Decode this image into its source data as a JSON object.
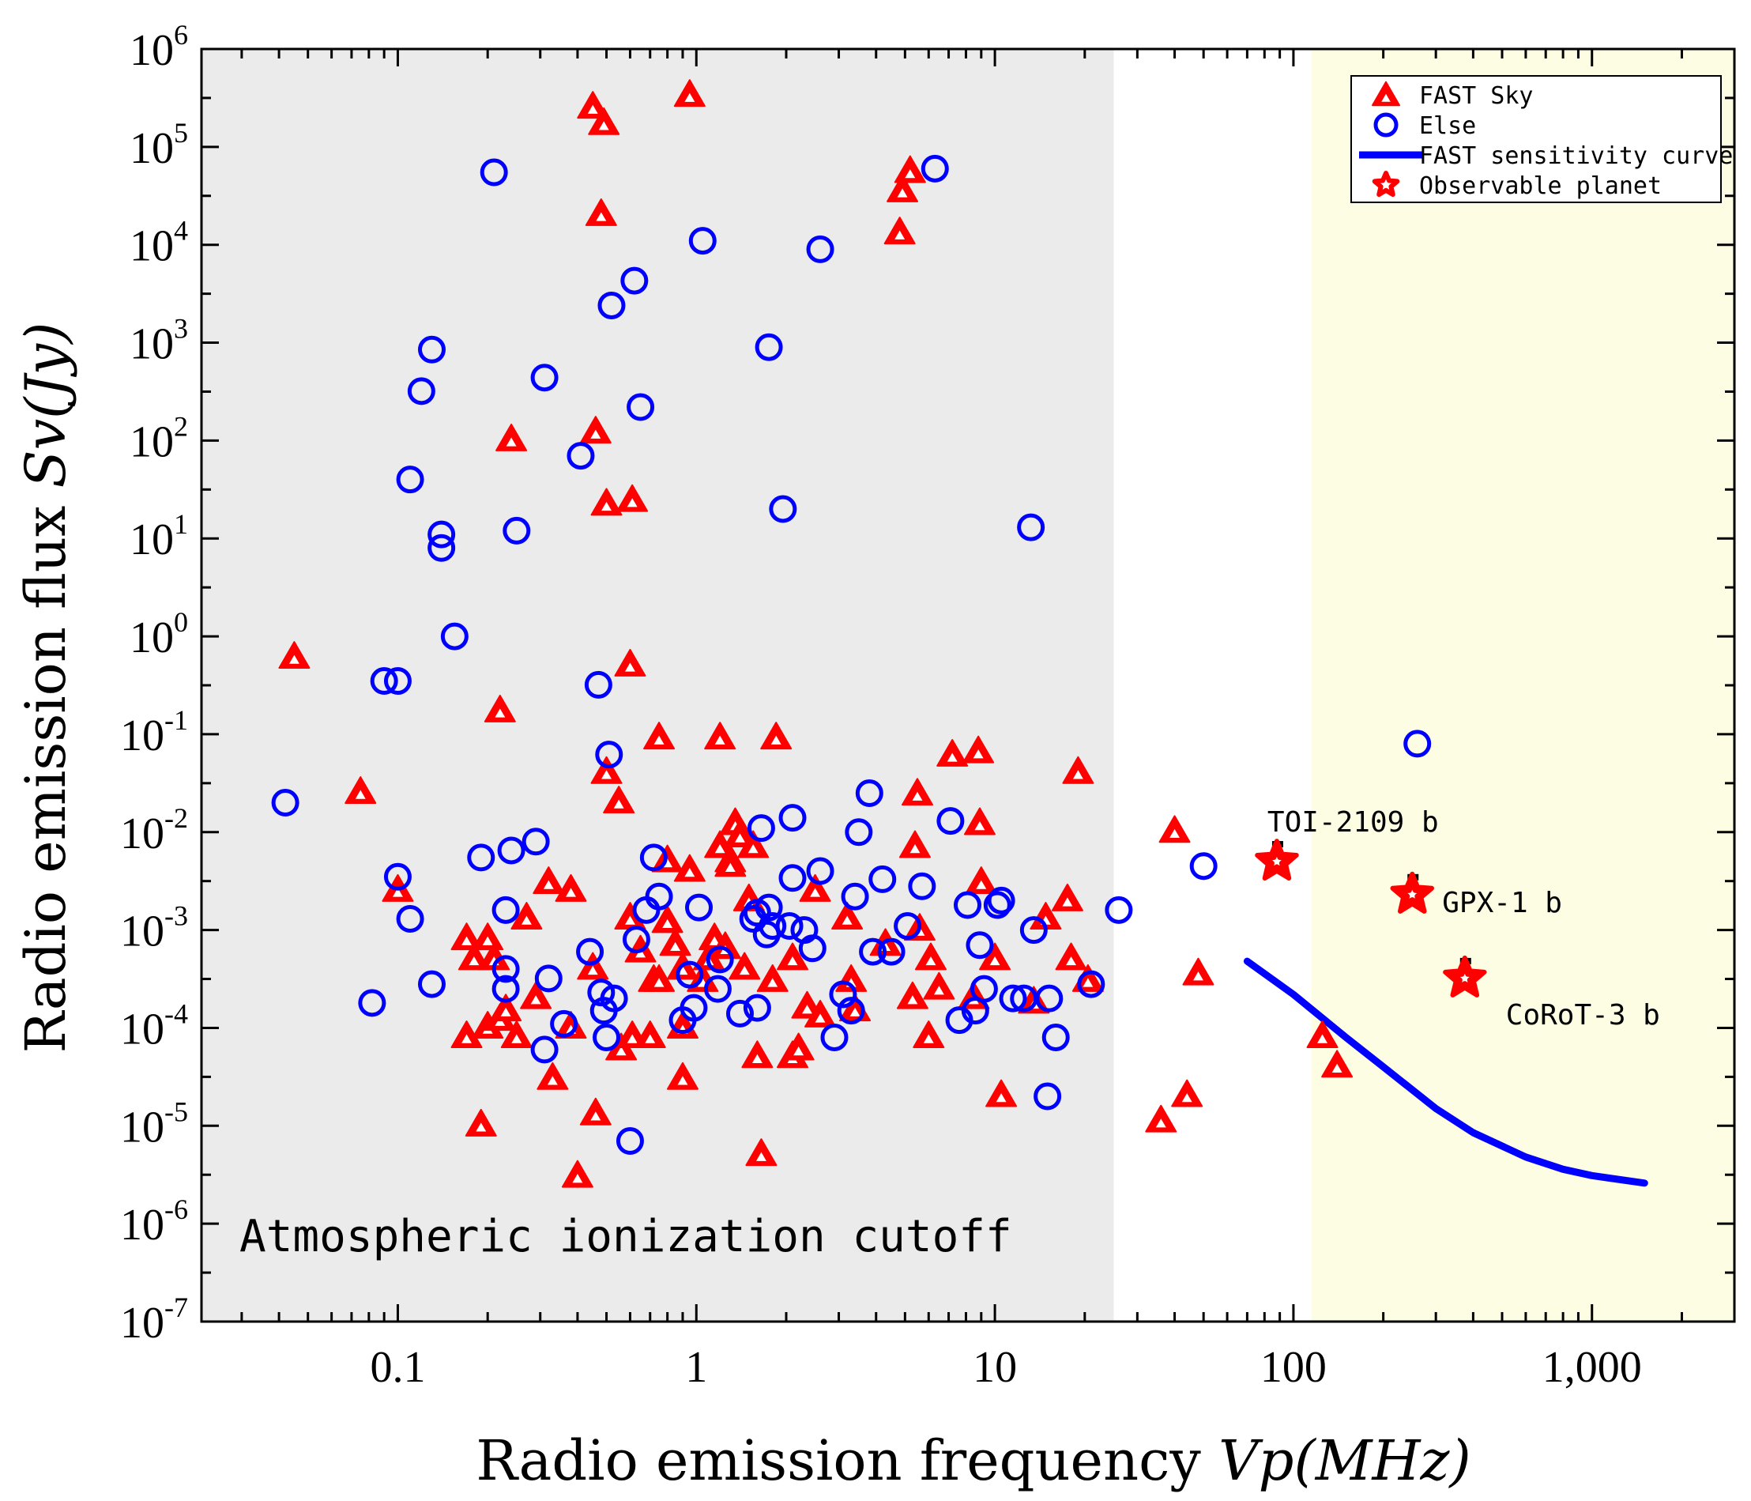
{
  "chart_data": {
    "type": "scatter",
    "xlabel": {
      "text": "Radio emission frequency ",
      "var": "Vp",
      "unit": "(MHz)"
    },
    "ylabel": {
      "text": "Radio emission flux ",
      "var": "Sv",
      "unit": "(Jy)"
    },
    "x_scale": "log",
    "y_scale": "log",
    "xlim": [
      0.022,
      3000
    ],
    "ylim": [
      1e-07,
      1000000.0
    ],
    "x_ticks": [
      {
        "value": 0.1,
        "label": "0.1"
      },
      {
        "value": 1,
        "label": "1"
      },
      {
        "value": 10,
        "label": "10"
      },
      {
        "value": 100,
        "label": "100"
      },
      {
        "value": 1000,
        "label": "1,000"
      }
    ],
    "y_ticks": [
      {
        "value": 1e-07,
        "base": "10",
        "exp": "-7"
      },
      {
        "value": 1e-06,
        "base": "10",
        "exp": "-6"
      },
      {
        "value": 1e-05,
        "base": "10",
        "exp": "-5"
      },
      {
        "value": 0.0001,
        "base": "10",
        "exp": "-4"
      },
      {
        "value": 0.001,
        "base": "10",
        "exp": "-3"
      },
      {
        "value": 0.01,
        "base": "10",
        "exp": "-2"
      },
      {
        "value": 0.1,
        "base": "10",
        "exp": "-1"
      },
      {
        "value": 1,
        "base": "10",
        "exp": "0"
      },
      {
        "value": 10,
        "base": "10",
        "exp": "1"
      },
      {
        "value": 100,
        "base": "10",
        "exp": "2"
      },
      {
        "value": 1000,
        "base": "10",
        "exp": "3"
      },
      {
        "value": 10000,
        "base": "10",
        "exp": "4"
      },
      {
        "value": 100000,
        "base": "10",
        "exp": "5"
      },
      {
        "value": 1000000,
        "base": "10",
        "exp": "6"
      }
    ],
    "grid": false,
    "legend_position": "top-right",
    "regions": [
      {
        "label": "Atmospheric ionization cutoff",
        "x_range": [
          0.022,
          25
        ],
        "color": "#ebebeb"
      },
      {
        "label": "",
        "x_range": [
          115,
          3000
        ],
        "color": "#fdfde3"
      }
    ],
    "series": [
      {
        "name": "FAST Sky",
        "marker": "triangle",
        "color": "#ff0000",
        "points": [
          [
            0.045,
            0.6
          ],
          [
            0.075,
            0.025
          ],
          [
            0.1,
            0.0025
          ],
          [
            0.17,
            0.0008
          ],
          [
            0.18,
            0.0005
          ],
          [
            0.17,
            8e-05
          ],
          [
            0.19,
            1e-05
          ],
          [
            0.2,
            0.0001
          ],
          [
            0.2,
            0.0008
          ],
          [
            0.21,
            0.0005
          ],
          [
            0.22,
            0.00012
          ],
          [
            0.23,
            0.00015
          ],
          [
            0.22,
            0.17
          ],
          [
            0.24,
            100
          ],
          [
            0.25,
            8e-05
          ],
          [
            0.27,
            0.0013
          ],
          [
            0.29,
            0.0002
          ],
          [
            0.32,
            0.003
          ],
          [
            0.33,
            3e-05
          ],
          [
            0.38,
            0.0001
          ],
          [
            0.38,
            0.0025
          ],
          [
            0.4,
            3e-06
          ],
          [
            0.45,
            0.0004
          ],
          [
            0.46,
            1.3e-05
          ],
          [
            0.45,
            250000
          ],
          [
            0.49,
            170000
          ],
          [
            0.48,
            20000
          ],
          [
            0.46,
            120
          ],
          [
            0.5,
            22
          ],
          [
            0.5,
            0.04
          ],
          [
            0.55,
            0.02
          ],
          [
            0.56,
            6e-05
          ],
          [
            0.6,
            0.0013
          ],
          [
            0.61,
            8e-05
          ],
          [
            0.6,
            0.5
          ],
          [
            0.61,
            24
          ],
          [
            0.65,
            0.0006
          ],
          [
            0.7,
            8e-05
          ],
          [
            0.72,
            0.0003
          ],
          [
            0.75,
            0.0003
          ],
          [
            0.75,
            0.09
          ],
          [
            0.8,
            0.0012
          ],
          [
            0.8,
            0.005
          ],
          [
            0.85,
            0.0007
          ],
          [
            0.9,
            3e-05
          ],
          [
            0.9,
            0.0001
          ],
          [
            0.9,
            0.0004
          ],
          [
            0.95,
            0.004
          ],
          [
            0.95,
            330000
          ],
          [
            1.05,
            0.0003
          ],
          [
            1.1,
            0.0005
          ],
          [
            1.15,
            0.0008
          ],
          [
            1.2,
            0.09
          ],
          [
            1.2,
            0.007
          ],
          [
            1.25,
            0.00065
          ],
          [
            1.3,
            0.005
          ],
          [
            1.3,
            0.0045
          ],
          [
            1.35,
            0.012
          ],
          [
            1.4,
            0.009
          ],
          [
            1.45,
            0.0004
          ],
          [
            1.5,
            0.002
          ],
          [
            1.55,
            0.007
          ],
          [
            1.6,
            5e-05
          ],
          [
            1.65,
            5e-06
          ],
          [
            1.8,
            0.0003
          ],
          [
            1.85,
            0.09
          ],
          [
            2.1,
            5e-05
          ],
          [
            2.1,
            0.0005
          ],
          [
            2.2,
            6e-05
          ],
          [
            2.35,
            0.00016
          ],
          [
            2.5,
            0.0025
          ],
          [
            2.6,
            0.00013
          ],
          [
            3.2,
            0.0013
          ],
          [
            3.3,
            0.0003
          ],
          [
            3.4,
            0.00015
          ],
          [
            4.3,
            0.0007
          ],
          [
            4.8,
            13000
          ],
          [
            4.9,
            35000
          ],
          [
            5.2,
            55000
          ],
          [
            5.3,
            0.0002
          ],
          [
            5.4,
            0.007
          ],
          [
            5.5,
            0.024
          ],
          [
            5.6,
            0.001
          ],
          [
            6,
            8e-05
          ],
          [
            6.1,
            0.0005
          ],
          [
            6.5,
            0.00025
          ],
          [
            7.2,
            0.06
          ],
          [
            8.5,
            0.0002
          ],
          [
            8.8,
            0.065
          ],
          [
            8.9,
            0.012
          ],
          [
            9,
            0.003
          ],
          [
            10,
            0.0005
          ],
          [
            10.5,
            2e-05
          ],
          [
            13.5,
            0.00018
          ],
          [
            14.8,
            0.0013
          ],
          [
            17.5,
            0.002
          ],
          [
            18,
            0.0005
          ],
          [
            19,
            0.04
          ],
          [
            20.5,
            0.0003
          ],
          [
            36,
            1.1e-05
          ],
          [
            40,
            0.01
          ],
          [
            44,
            2e-05
          ],
          [
            48,
            0.00035
          ],
          [
            125,
            8e-05
          ],
          [
            140,
            4e-05
          ]
        ]
      },
      {
        "name": "Else",
        "marker": "circle",
        "color": "#0000ff",
        "points": [
          [
            0.042,
            0.02
          ],
          [
            0.082,
            0.00018
          ],
          [
            0.09,
            0.35
          ],
          [
            0.1,
            0.35
          ],
          [
            0.1,
            0.0035
          ],
          [
            0.11,
            40
          ],
          [
            0.11,
            0.0013
          ],
          [
            0.12,
            320
          ],
          [
            0.13,
            0.00028
          ],
          [
            0.13,
            850
          ],
          [
            0.14,
            11
          ],
          [
            0.14,
            8
          ],
          [
            0.155,
            1
          ],
          [
            0.19,
            0.0055
          ],
          [
            0.21,
            55000
          ],
          [
            0.23,
            0.0004
          ],
          [
            0.23,
            0.00025
          ],
          [
            0.23,
            0.0016
          ],
          [
            0.24,
            0.0065
          ],
          [
            0.25,
            12
          ],
          [
            0.29,
            0.008
          ],
          [
            0.31,
            440
          ],
          [
            0.31,
            6e-05
          ],
          [
            0.32,
            0.00032
          ],
          [
            0.36,
            0.00011
          ],
          [
            0.41,
            70
          ],
          [
            0.44,
            0.0006
          ],
          [
            0.47,
            0.32
          ],
          [
            0.48,
            0.00023
          ],
          [
            0.49,
            0.00015
          ],
          [
            0.5,
            8e-05
          ],
          [
            0.51,
            0.062
          ],
          [
            0.52,
            2400
          ],
          [
            0.53,
            0.0002
          ],
          [
            0.6,
            7e-06
          ],
          [
            0.62,
            4300
          ],
          [
            0.63,
            0.0008
          ],
          [
            0.65,
            220
          ],
          [
            0.68,
            0.0016
          ],
          [
            0.72,
            0.0055
          ],
          [
            0.75,
            0.0022
          ],
          [
            0.9,
            0.00012
          ],
          [
            0.95,
            0.00035
          ],
          [
            0.98,
            0.00016
          ],
          [
            1.02,
            0.0017
          ],
          [
            1.05,
            11000
          ],
          [
            1.18,
            0.00025
          ],
          [
            1.2,
            0.0005
          ],
          [
            1.4,
            0.00014
          ],
          [
            1.55,
            0.0013
          ],
          [
            1.6,
            0.00016
          ],
          [
            1.6,
            0.0015
          ],
          [
            1.65,
            0.011
          ],
          [
            1.72,
            0.0009
          ],
          [
            1.75,
            0.0017
          ],
          [
            1.75,
            900
          ],
          [
            1.8,
            0.0011
          ],
          [
            1.95,
            20
          ],
          [
            2.05,
            0.0011
          ],
          [
            2.1,
            0.0034
          ],
          [
            2.1,
            0.014
          ],
          [
            2.3,
            0.001
          ],
          [
            2.45,
            0.00065
          ],
          [
            2.6,
            0.004
          ],
          [
            2.6,
            9000
          ],
          [
            2.9,
            8e-05
          ],
          [
            3.1,
            0.00022
          ],
          [
            3.3,
            0.00015
          ],
          [
            3.4,
            0.0022
          ],
          [
            3.5,
            0.01
          ],
          [
            3.8,
            0.025
          ],
          [
            3.9,
            0.0006
          ],
          [
            4.2,
            0.0033
          ],
          [
            4.5,
            0.0006
          ],
          [
            5.1,
            0.0011
          ],
          [
            5.7,
            0.0028
          ],
          [
            6.3,
            60000
          ],
          [
            7.1,
            0.013
          ],
          [
            7.6,
            0.00012
          ],
          [
            8.1,
            0.0018
          ],
          [
            8.6,
            0.00015
          ],
          [
            8.9,
            0.0007
          ],
          [
            9.2,
            0.00025
          ],
          [
            10.2,
            0.0018
          ],
          [
            10.5,
            0.002
          ],
          [
            11.5,
            0.0002
          ],
          [
            12.5,
            0.0002
          ],
          [
            13.2,
            13
          ],
          [
            13.5,
            0.001
          ],
          [
            15,
            2e-05
          ],
          [
            15.2,
            0.0002
          ],
          [
            16,
            8e-05
          ],
          [
            21,
            0.00028
          ],
          [
            26,
            0.0016
          ],
          [
            50,
            0.0045
          ],
          [
            260,
            0.08
          ]
        ]
      }
    ],
    "sensitivity_curve": {
      "name": "FAST sensitivity curve",
      "color": "#0000ff",
      "points": [
        [
          70,
          0.00048
        ],
        [
          100,
          0.00022
        ],
        [
          150,
          8e-05
        ],
        [
          200,
          4e-05
        ],
        [
          300,
          1.5e-05
        ],
        [
          400,
          8.5e-06
        ],
        [
          600,
          4.8e-06
        ],
        [
          800,
          3.6e-06
        ],
        [
          1000,
          3.1e-06
        ],
        [
          1500,
          2.6e-06
        ]
      ]
    },
    "observable_planets": {
      "name": "Observable planet",
      "color": "#ff0000",
      "points": [
        {
          "label": "TOI-2109 b",
          "x": 88,
          "y": 0.005
        },
        {
          "label": "GPX-1 b",
          "x": 250,
          "y": 0.0023
        },
        {
          "label": "CoRoT-3 b",
          "x": 375,
          "y": 0.00032
        }
      ]
    }
  }
}
